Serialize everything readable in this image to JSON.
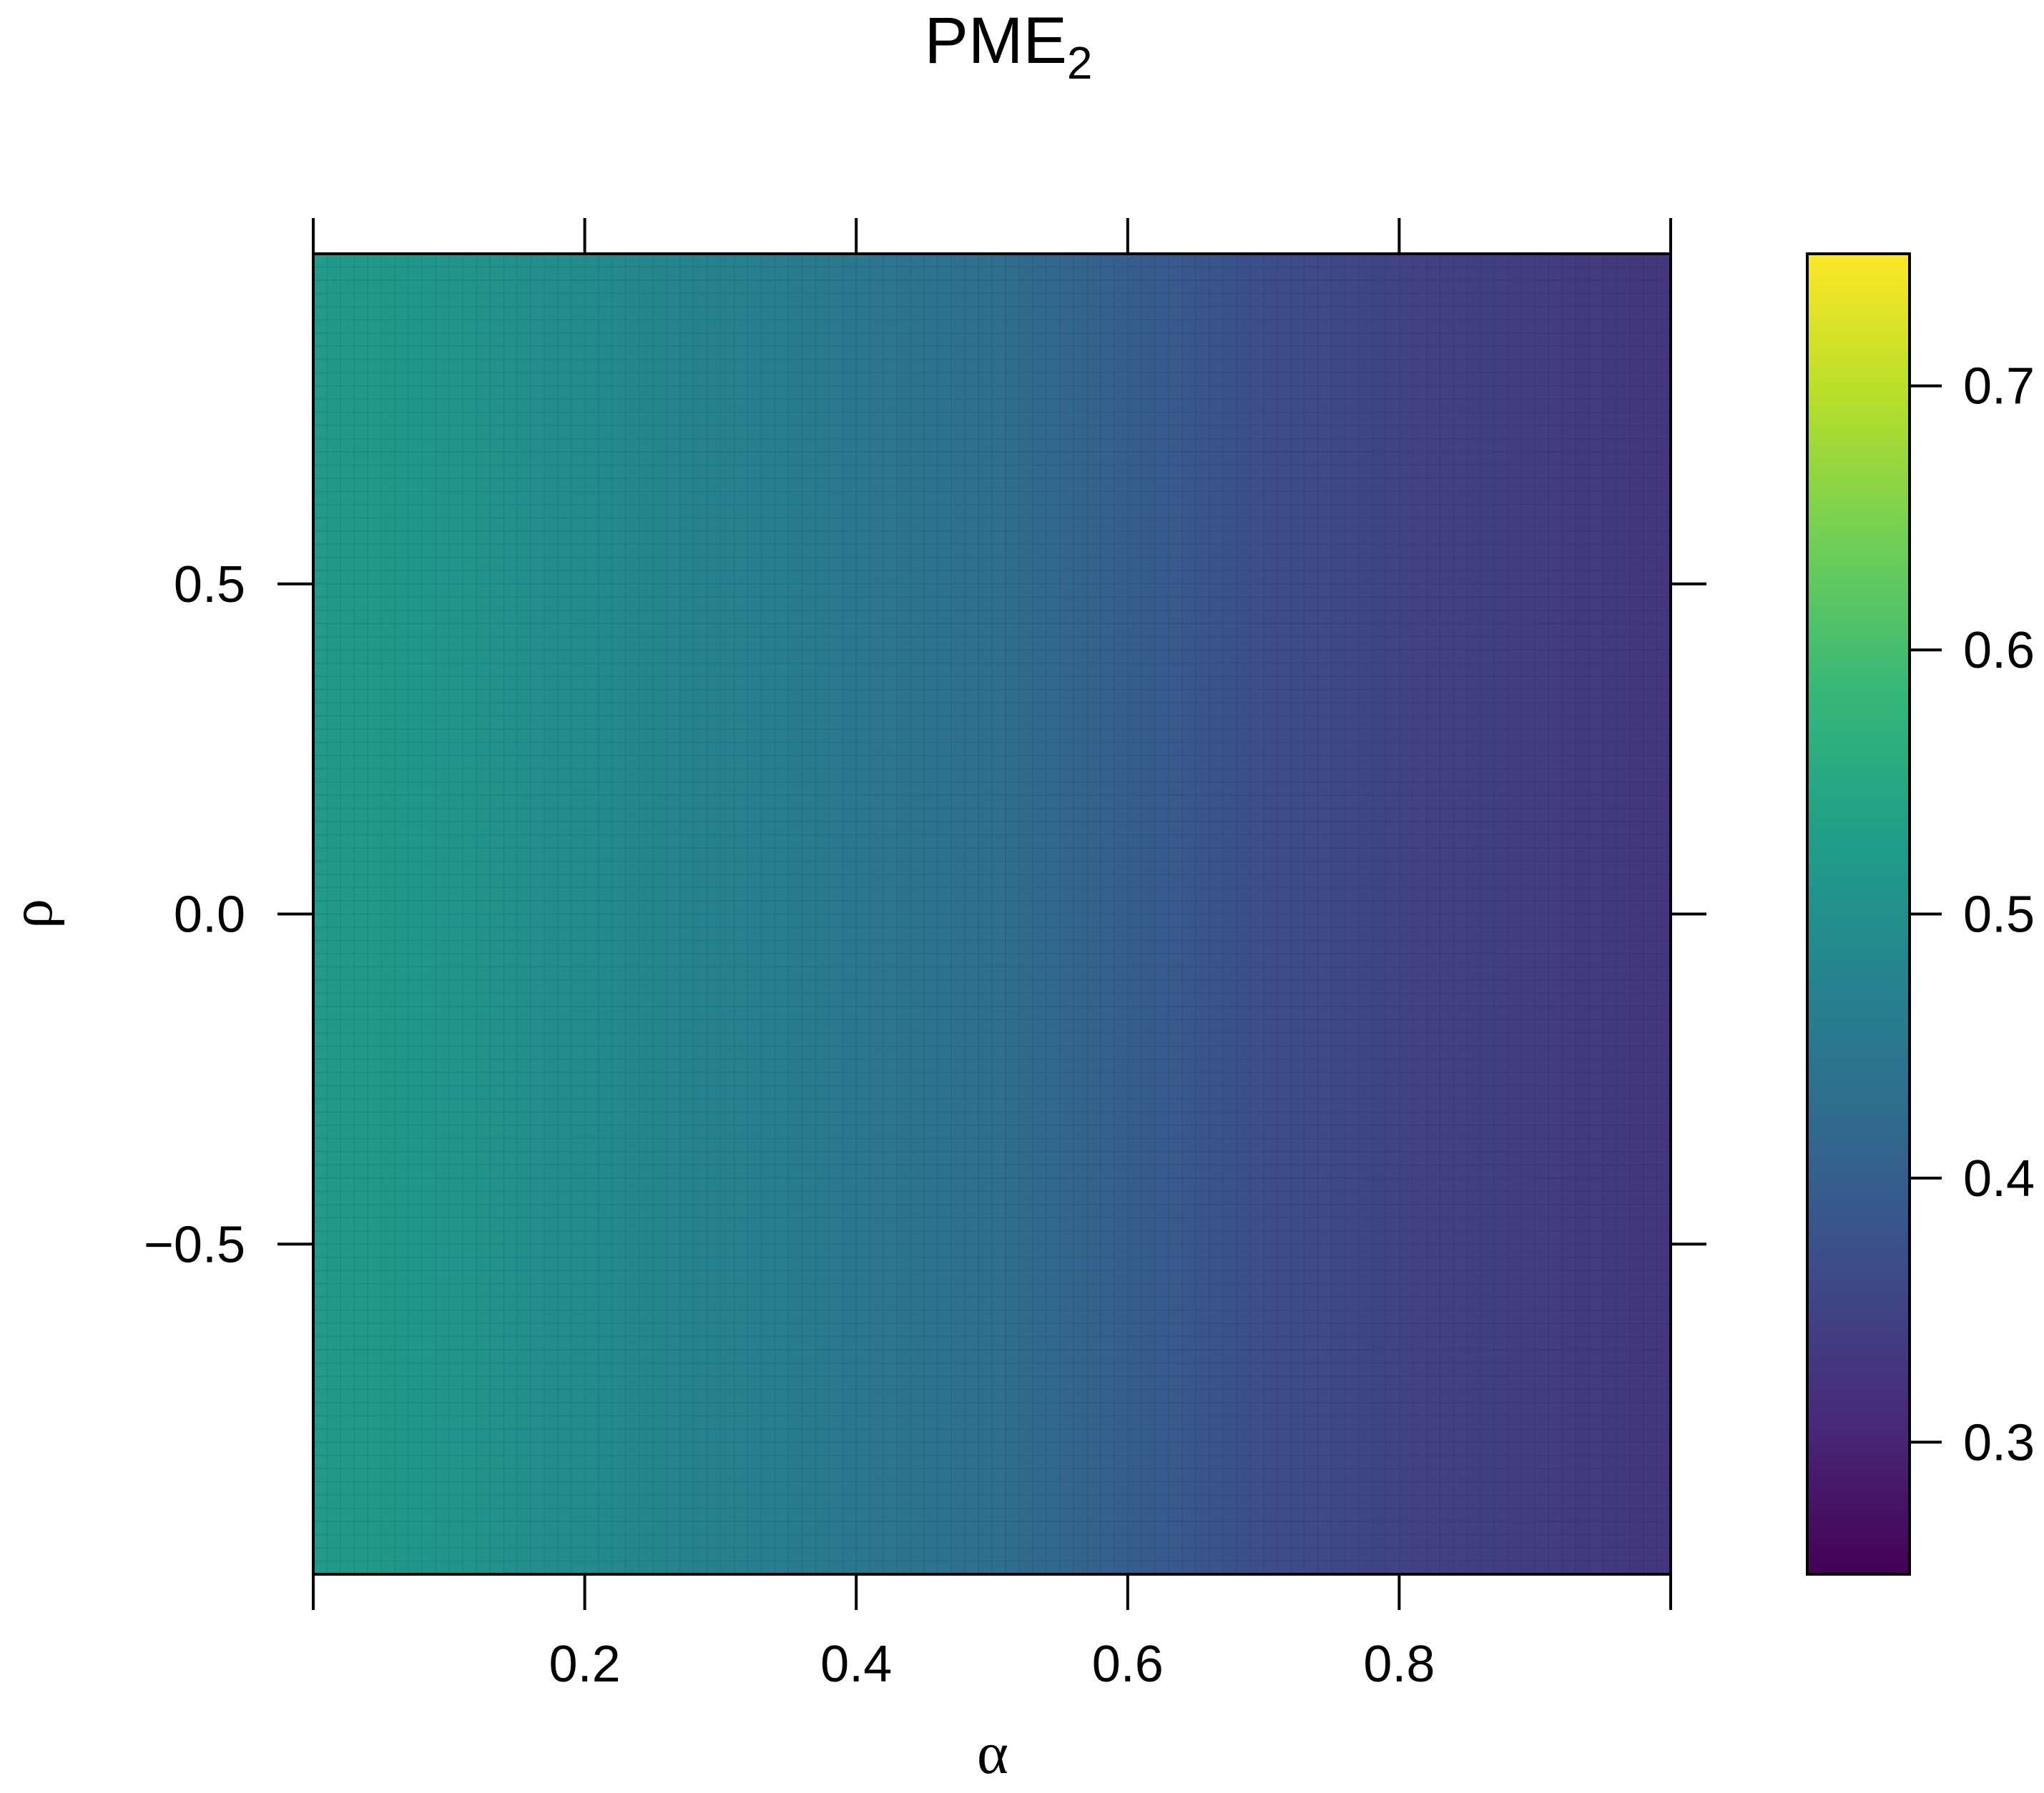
{
  "chart_data": {
    "type": "heatmap",
    "title": "PME",
    "title_subscript": "2",
    "xlabel": "α",
    "ylabel": "ρ",
    "xlim": [
      0.0,
      1.0
    ],
    "ylim": [
      -1.0,
      1.0
    ],
    "x_ticks": [
      0.2,
      0.4,
      0.6,
      0.8
    ],
    "x_tick_labels": [
      "0.2",
      "0.4",
      "0.6",
      "0.8"
    ],
    "y_ticks": [
      -0.5,
      0.0,
      0.5
    ],
    "y_tick_labels": [
      "−0.5",
      "0.0",
      "0.5"
    ],
    "colorbar": {
      "range": [
        0.25,
        0.75
      ],
      "ticks": [
        0.3,
        0.4,
        0.5,
        0.6,
        0.7
      ],
      "tick_labels": [
        "0.3",
        "0.4",
        "0.5",
        "0.6",
        "0.7"
      ],
      "colormap": "viridis"
    },
    "value_profile_by_alpha": {
      "alpha": [
        0.0,
        0.1,
        0.2,
        0.3,
        0.4,
        0.5,
        0.6,
        0.7,
        0.8,
        0.9,
        1.0
      ],
      "value": [
        0.52,
        0.51,
        0.49,
        0.47,
        0.45,
        0.43,
        0.4,
        0.37,
        0.35,
        0.34,
        0.33
      ]
    },
    "note_value_independent_of_rho": true
  },
  "colors": {
    "viridis_stops": [
      "#440154",
      "#482878",
      "#3e4989",
      "#31688e",
      "#26828e",
      "#1f9e89",
      "#35b779",
      "#6ece58",
      "#b5de2b",
      "#fde725"
    ]
  }
}
